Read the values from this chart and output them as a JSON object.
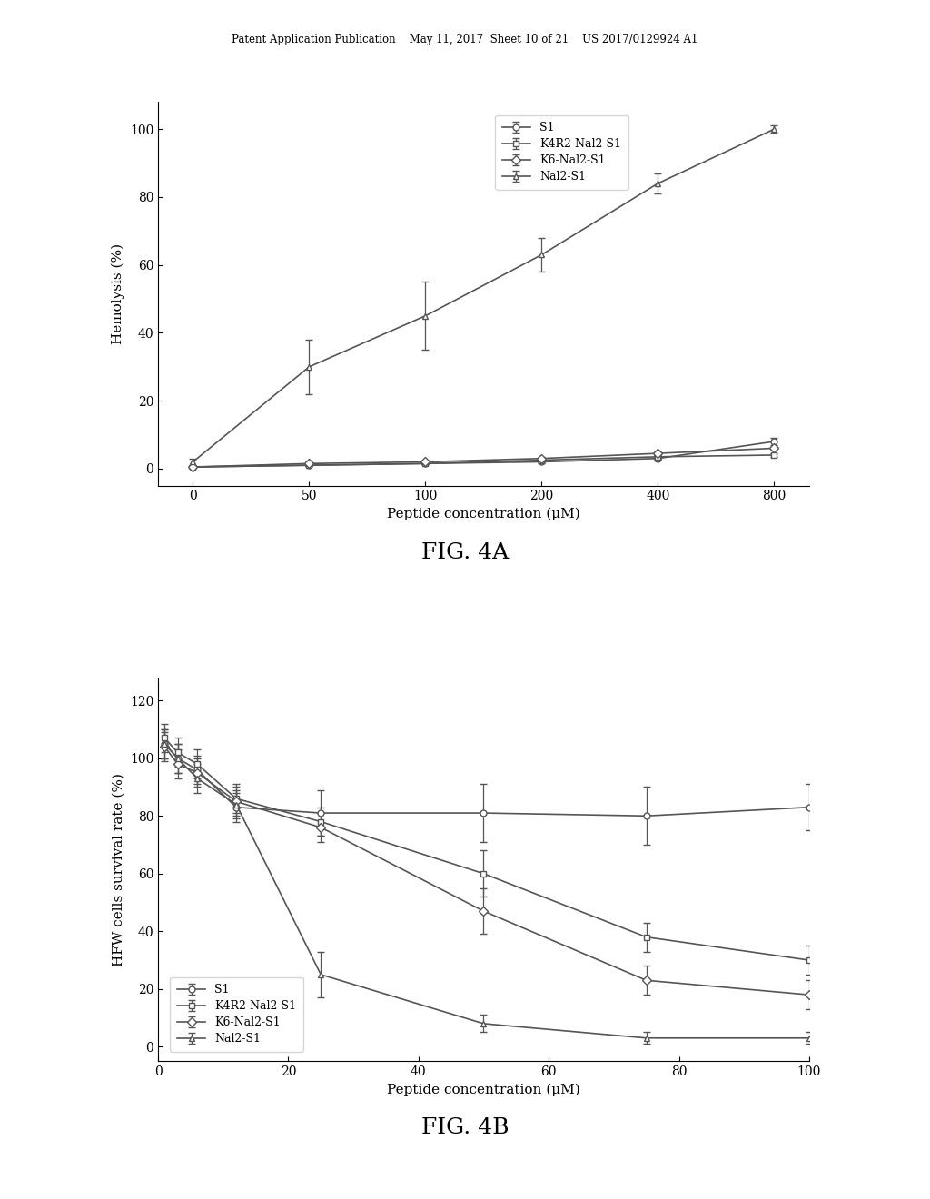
{
  "fig4a": {
    "title": "FIG. 4A",
    "xlabel": "Peptide concentration (μM)",
    "ylabel": "Hemolysis (%)",
    "xlim_data": [
      0,
      800
    ],
    "ylim": [
      -5,
      108
    ],
    "xtick_positions": [
      0,
      50,
      100,
      200,
      400,
      800
    ],
    "xtick_labels": [
      "0",
      "50",
      "100",
      "200",
      "400",
      "800"
    ],
    "yticks": [
      0,
      20,
      40,
      60,
      80,
      100
    ],
    "series": {
      "S1": {
        "x": [
          0,
          50,
          100,
          200,
          400,
          800
        ],
        "y": [
          0.5,
          1.0,
          1.5,
          2.0,
          3.0,
          8.0
        ],
        "yerr": [
          0.3,
          0.3,
          0.3,
          0.3,
          0.5,
          1.0
        ],
        "marker": "o",
        "linestyle": "-"
      },
      "K4R2-Nal2-S1": {
        "x": [
          0,
          50,
          100,
          200,
          400,
          800
        ],
        "y": [
          0.5,
          1.0,
          1.5,
          2.5,
          3.5,
          4.0
        ],
        "yerr": [
          0.3,
          0.3,
          0.3,
          0.5,
          0.5,
          0.5
        ],
        "marker": "s",
        "linestyle": "-"
      },
      "K6-Nal2-S1": {
        "x": [
          0,
          50,
          100,
          200,
          400,
          800
        ],
        "y": [
          0.5,
          1.5,
          2.0,
          3.0,
          4.5,
          6.0
        ],
        "yerr": [
          0.3,
          0.5,
          0.5,
          0.5,
          0.5,
          0.5
        ],
        "marker": "D",
        "linestyle": "-"
      },
      "Nal2-S1": {
        "x": [
          0,
          50,
          100,
          200,
          400,
          800
        ],
        "y": [
          2.0,
          30.0,
          45.0,
          63.0,
          84.0,
          100.0
        ],
        "yerr": [
          1.0,
          8.0,
          10.0,
          5.0,
          3.0,
          1.0
        ],
        "marker": "^",
        "linestyle": "-"
      }
    }
  },
  "fig4b": {
    "title": "FIG. 4B",
    "xlabel": "Peptide concentration (μM)",
    "ylabel": "HFW cells survival rate (%)",
    "xlim_data": [
      0,
      100
    ],
    "ylim": [
      -5,
      128
    ],
    "xtick_positions": [
      0,
      20,
      40,
      60,
      80,
      100
    ],
    "xtick_labels": [
      "0",
      "20",
      "40",
      "60",
      "80",
      "100"
    ],
    "yticks": [
      0,
      20,
      40,
      60,
      80,
      100,
      120
    ],
    "series": {
      "S1": {
        "x": [
          1,
          3,
          6,
          12,
          25,
          50,
          75,
          100
        ],
        "y": [
          105.0,
          100.0,
          96.0,
          83.0,
          81.0,
          81.0,
          80.0,
          83.0
        ],
        "yerr": [
          5.0,
          5.0,
          5.0,
          5.0,
          8.0,
          10.0,
          10.0,
          8.0
        ],
        "marker": "o",
        "linestyle": "-"
      },
      "K4R2-Nal2-S1": {
        "x": [
          1,
          3,
          6,
          12,
          25,
          50,
          75,
          100
        ],
        "y": [
          107.0,
          102.0,
          98.0,
          86.0,
          78.0,
          60.0,
          38.0,
          30.0
        ],
        "yerr": [
          5.0,
          5.0,
          5.0,
          5.0,
          5.0,
          8.0,
          5.0,
          5.0
        ],
        "marker": "s",
        "linestyle": "-"
      },
      "K6-Nal2-S1": {
        "x": [
          1,
          3,
          6,
          12,
          25,
          50,
          75,
          100
        ],
        "y": [
          104.0,
          98.0,
          95.0,
          85.0,
          76.0,
          47.0,
          23.0,
          18.0
        ],
        "yerr": [
          5.0,
          5.0,
          5.0,
          5.0,
          5.0,
          8.0,
          5.0,
          5.0
        ],
        "marker": "D",
        "linestyle": "-"
      },
      "Nal2-S1": {
        "x": [
          1,
          3,
          6,
          12,
          25,
          50,
          75,
          100
        ],
        "y": [
          105.0,
          100.0,
          93.0,
          84.0,
          25.0,
          8.0,
          3.0,
          3.0
        ],
        "yerr": [
          5.0,
          5.0,
          5.0,
          5.0,
          8.0,
          3.0,
          2.0,
          2.0
        ],
        "marker": "^",
        "linestyle": "-"
      }
    }
  },
  "header_text": "Patent Application Publication    May 11, 2017  Sheet 10 of 21    US 2017/0129924 A1",
  "line_color": "#555555",
  "marker_size": 5,
  "linewidth": 1.2,
  "capsize": 3,
  "elinewidth": 0.9
}
